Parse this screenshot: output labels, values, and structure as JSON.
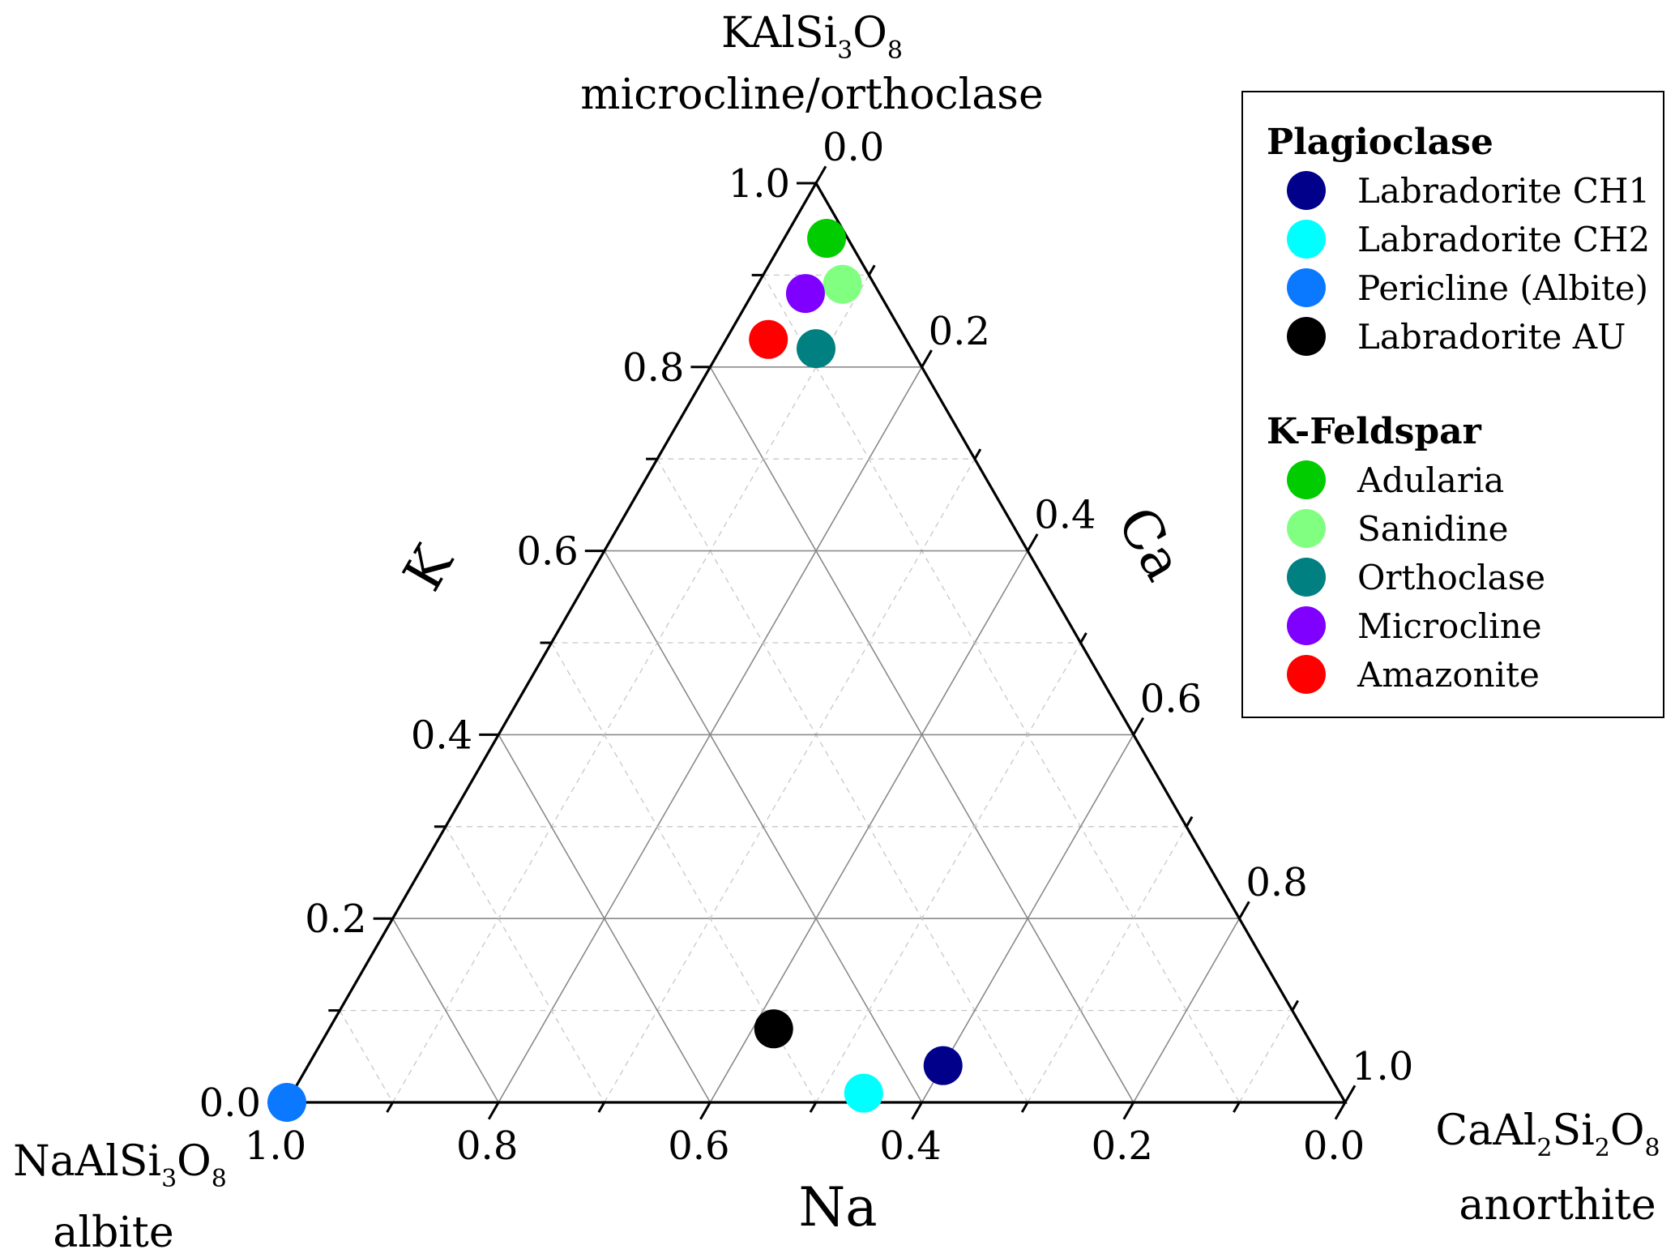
{
  "chart_data": {
    "type": "scatter",
    "subtype": "ternary",
    "vertices": {
      "top": {
        "formula": [
          "KAlSi",
          "3",
          "O",
          "8"
        ],
        "mineral": "microcline/orthoclase"
      },
      "left": {
        "formula": [
          "NaAlSi",
          "3",
          "O",
          "8"
        ],
        "mineral": "albite"
      },
      "right": {
        "formula": [
          "CaAl",
          "2",
          "Si",
          "2",
          "O",
          "8"
        ],
        "mineral": "anorthite"
      }
    },
    "axes": {
      "K": {
        "label": "K",
        "ticks": [
          "0.0",
          "0.2",
          "0.4",
          "0.6",
          "0.8",
          "1.0"
        ]
      },
      "Ca": {
        "label": "Ca",
        "ticks": [
          "0.0",
          "0.2",
          "0.4",
          "0.6",
          "0.8",
          "1.0"
        ]
      },
      "Na": {
        "label": "Na",
        "ticks": [
          "1.0",
          "0.8",
          "0.6",
          "0.4",
          "0.2",
          "0.0"
        ]
      }
    },
    "grid": true,
    "legend_position": "top-right",
    "groups": [
      {
        "name": "Plagioclase",
        "series": [
          {
            "name": "Labradorite CH1",
            "color": "#00008b",
            "points": [
              {
                "Na": 0.36,
                "K": 0.04,
                "Ca": 0.6
              }
            ]
          },
          {
            "name": "Labradorite CH2",
            "color": "#00ffff",
            "points": [
              {
                "Na": 0.45,
                "K": 0.01,
                "Ca": 0.54
              }
            ]
          },
          {
            "name": "Pericline (Albite)",
            "color": "#0a78ff",
            "points": [
              {
                "Na": 1.0,
                "K": 0.0,
                "Ca": 0.0
              }
            ]
          },
          {
            "name": "Labradorite AU",
            "color": "#000000",
            "points": [
              {
                "Na": 0.5,
                "K": 0.08,
                "Ca": 0.42
              }
            ]
          }
        ]
      },
      {
        "name": "K-Feldspar",
        "series": [
          {
            "name": "Adularia",
            "color": "#00cc00",
            "points": [
              {
                "Na": 0.02,
                "K": 0.94,
                "Ca": 0.04
              }
            ]
          },
          {
            "name": "Sanidine",
            "color": "#80ff80",
            "points": [
              {
                "Na": 0.03,
                "K": 0.89,
                "Ca": 0.08
              }
            ]
          },
          {
            "name": "Orthoclase",
            "color": "#008080",
            "points": [
              {
                "Na": 0.09,
                "K": 0.82,
                "Ca": 0.09
              }
            ]
          },
          {
            "name": "Microcline",
            "color": "#7f00ff",
            "points": [
              {
                "Na": 0.07,
                "K": 0.88,
                "Ca": 0.05
              }
            ]
          },
          {
            "name": "Amazonite",
            "color": "#ff0000",
            "points": [
              {
                "Na": 0.13,
                "K": 0.83,
                "Ca": 0.04
              }
            ]
          }
        ]
      }
    ]
  }
}
